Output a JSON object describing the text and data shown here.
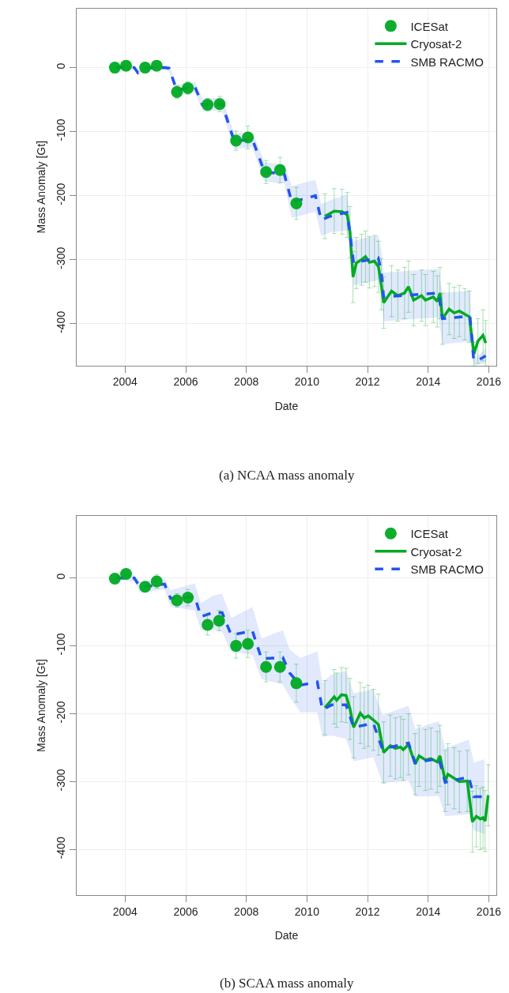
{
  "chart_data": [
    {
      "type": "line",
      "xlabel": "Date",
      "ylabel": "Mass Anomaly [Gt]",
      "annotations": [
        "(a) NCAA mass anomaly"
      ],
      "xlim": [
        2002.4,
        2016.25
      ],
      "xticks": [
        2004,
        2006,
        2008,
        2010,
        2012,
        2014,
        2016
      ],
      "ylim": [
        -465,
        92
      ],
      "yticks": [
        0,
        -100,
        -200,
        -300,
        -400
      ],
      "grid": true,
      "legend": "top right",
      "series": [
        {
          "name": "ICESat",
          "type": "scatter",
          "marker": "circle",
          "color": "#00aa22",
          "x": [
            2003.66,
            2004.03,
            2004.66,
            2005.04,
            2005.71,
            2006.07,
            2006.72,
            2007.12,
            2007.66,
            2008.05,
            2008.65,
            2009.11,
            2009.65
          ],
          "values": [
            0,
            3,
            0,
            3,
            -38,
            -32,
            -58,
            -57,
            -114,
            -109,
            -163,
            -160,
            -212
          ],
          "errors": [
            null,
            null,
            null,
            null,
            10,
            10,
            10,
            12,
            15,
            18,
            18,
            20,
            25
          ]
        },
        {
          "name": "Cryosat-2",
          "type": "line",
          "marker": "none",
          "line_style": "solid",
          "color": "#00aa22",
          "x": [
            2010.59,
            2010.9,
            2011.16,
            2011.33,
            2011.42,
            2011.52,
            2011.63,
            2011.8,
            2011.93,
            2012.06,
            2012.23,
            2012.36,
            2012.45,
            2012.53,
            2012.79,
            2013.0,
            2013.22,
            2013.35,
            2013.52,
            2013.78,
            2013.91,
            2014.17,
            2014.3,
            2014.39,
            2014.47,
            2014.69,
            2014.86,
            2015.03,
            2015.21,
            2015.36,
            2015.51,
            2015.64,
            2015.81,
            2015.9
          ],
          "values": [
            -232,
            -224,
            -225,
            -230,
            -257,
            -327,
            -305,
            -300,
            -295,
            -304,
            -302,
            -311,
            -338,
            -367,
            -349,
            -356,
            -352,
            -342,
            -363,
            -356,
            -363,
            -358,
            -365,
            -352,
            -392,
            -377,
            -383,
            -380,
            -385,
            -389,
            -447,
            -427,
            -418,
            -430
          ],
          "errors": [
            35,
            35,
            35,
            35,
            40,
            40,
            40,
            40,
            40,
            40,
            40,
            40,
            40,
            40,
            40,
            40,
            40,
            40,
            40,
            40,
            40,
            40,
            40,
            40,
            40,
            40,
            40,
            40,
            40,
            40,
            18,
            35,
            40,
            35
          ]
        },
        {
          "name": "SMB RACMO",
          "type": "line",
          "marker": "none",
          "line_style": "dashed",
          "color": "#2255ee",
          "x": [
            2003.7,
            2004.3,
            2004.42,
            2004.6,
            2005.3,
            2005.45,
            2005.7,
            2006.3,
            2006.55,
            2007.2,
            2007.6,
            2008.2,
            2008.6,
            2009.25,
            2009.5,
            2010.28,
            2010.47,
            2010.77,
            2011.32,
            2011.42,
            2011.54,
            2012.35,
            2012.45,
            2012.53,
            2014.34,
            2014.47,
            2015.38,
            2015.5,
            2015.6,
            2015.9
          ],
          "values": [
            0,
            0,
            -8,
            -1,
            0,
            -1,
            -35,
            -30,
            -58,
            -57,
            -115,
            -112,
            -163,
            -166,
            -210,
            -200,
            -238,
            -232,
            -226,
            -260,
            -305,
            -297,
            -318,
            -358,
            -352,
            -392,
            -388,
            -456,
            -458,
            -450
          ],
          "lower": [
            -3,
            -3,
            -11,
            -4,
            -3,
            -6,
            -43,
            -38,
            -68,
            -67,
            -127,
            -124,
            -178,
            -181,
            -235,
            -225,
            -263,
            -257,
            -254,
            -288,
            -340,
            -332,
            -353,
            -396,
            -390,
            -432,
            -428,
            -464,
            -464,
            -462
          ],
          "upper": [
            3,
            3,
            -5,
            2,
            3,
            4,
            -27,
            -22,
            -48,
            -47,
            -103,
            -100,
            -148,
            -151,
            -185,
            -175,
            -213,
            -207,
            -198,
            -232,
            -270,
            -262,
            -283,
            -320,
            -314,
            -352,
            -348,
            -448,
            -452,
            -438
          ]
        }
      ]
    },
    {
      "type": "line",
      "xlabel": "Date",
      "ylabel": "Mass Anomaly [Gt]",
      "annotations": [
        "(b) SCAA mass anomaly"
      ],
      "xlim": [
        2002.4,
        2016.25
      ],
      "xticks": [
        2004,
        2006,
        2008,
        2010,
        2012,
        2014,
        2016
      ],
      "ylim": [
        -467,
        91
      ],
      "yticks": [
        0,
        -100,
        -200,
        -300,
        -400
      ],
      "grid": true,
      "legend": "top right",
      "series": [
        {
          "name": "ICESat",
          "type": "scatter",
          "marker": "circle",
          "color": "#00aa22",
          "x": [
            2003.66,
            2004.03,
            2004.66,
            2005.04,
            2005.71,
            2006.07,
            2006.72,
            2007.1,
            2007.66,
            2008.05,
            2008.65,
            2009.11,
            2009.65
          ],
          "values": [
            -1,
            6,
            -13,
            -5,
            -33,
            -29,
            -69,
            -63,
            -100,
            -97,
            -131,
            -131,
            -155
          ],
          "errors": [
            null,
            null,
            null,
            10,
            10,
            12,
            15,
            15,
            18,
            20,
            22,
            22,
            28
          ]
        },
        {
          "name": "Cryosat-2",
          "type": "line",
          "marker": "none",
          "line_style": "solid",
          "color": "#00aa22",
          "x": [
            2010.59,
            2010.9,
            2010.98,
            2011.14,
            2011.29,
            2011.42,
            2011.54,
            2011.76,
            2011.89,
            2012.02,
            2012.19,
            2012.36,
            2012.53,
            2012.75,
            2012.92,
            2013.09,
            2013.18,
            2013.35,
            2013.57,
            2013.7,
            2013.91,
            2014.09,
            2014.3,
            2014.39,
            2014.56,
            2014.65,
            2014.86,
            2015.03,
            2015.29,
            2015.46,
            2015.59,
            2015.72,
            2015.81,
            2015.88,
            2015.98
          ],
          "values": [
            -191,
            -175,
            -180,
            -172,
            -173,
            -193,
            -220,
            -199,
            -206,
            -203,
            -209,
            -216,
            -257,
            -247,
            -251,
            -249,
            -253,
            -245,
            -274,
            -262,
            -268,
            -266,
            -271,
            -262,
            -299,
            -289,
            -295,
            -300,
            -299,
            -359,
            -351,
            -355,
            -353,
            -358,
            -320
          ],
          "errors": [
            40,
            40,
            40,
            40,
            40,
            45,
            45,
            45,
            45,
            45,
            45,
            45,
            45,
            45,
            45,
            45,
            45,
            45,
            45,
            45,
            45,
            45,
            45,
            45,
            45,
            45,
            45,
            45,
            45,
            45,
            45,
            45,
            45,
            45,
            45
          ]
        },
        {
          "name": "SMB RACMO",
          "type": "line",
          "marker": "none",
          "line_style": "dashed",
          "color": "#2255ee",
          "x": [
            2003.7,
            2004.3,
            2004.5,
            2004.8,
            2005.1,
            2005.3,
            2005.5,
            2006.3,
            2006.5,
            2006.9,
            2007.2,
            2007.5,
            2008.2,
            2008.5,
            2009.2,
            2009.43,
            2009.78,
            2010.34,
            2010.51,
            2010.81,
            2011.29,
            2011.54,
            2012.19,
            2012.49,
            2013.35,
            2013.57,
            2014.35,
            2014.56,
            2015.34,
            2015.51,
            2015.86
          ],
          "values": [
            0,
            0,
            -14,
            -12,
            -10,
            -9,
            -30,
            -28,
            -57,
            -51,
            -51,
            -84,
            -78,
            -119,
            -117,
            -140,
            -158,
            -153,
            -194,
            -187,
            -187,
            -220,
            -214,
            -252,
            -243,
            -272,
            -266,
            -301,
            -293,
            -322,
            -322
          ],
          "lower": [
            -3,
            -5,
            -22,
            -20,
            -18,
            -17,
            -42,
            -48,
            -77,
            -76,
            -79,
            -109,
            -113,
            -149,
            -157,
            -175,
            -198,
            -198,
            -234,
            -232,
            -237,
            -270,
            -264,
            -302,
            -298,
            -322,
            -321,
            -351,
            -348,
            -372,
            -377
          ],
          "upper": [
            3,
            5,
            -6,
            -4,
            -2,
            -1,
            -18,
            -8,
            -37,
            -26,
            -23,
            -59,
            -43,
            -89,
            -77,
            -105,
            -118,
            -108,
            -154,
            -142,
            -137,
            -170,
            -164,
            -202,
            -188,
            -222,
            -211,
            -251,
            -238,
            -272,
            -267
          ]
        }
      ]
    }
  ]
}
